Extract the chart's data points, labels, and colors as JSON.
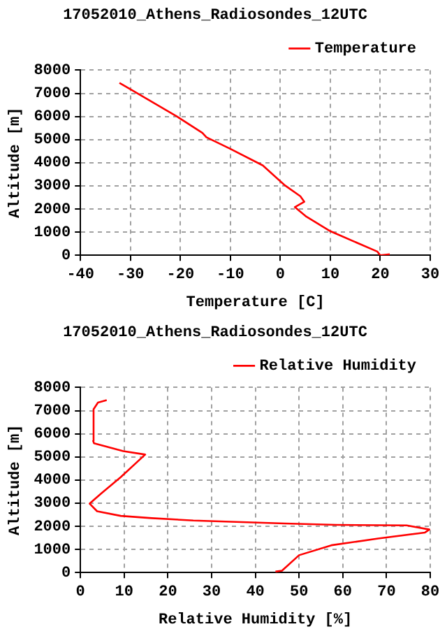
{
  "chart_data": [
    {
      "type": "line",
      "title": "17052010_Athens_Radiosondes_12UTC",
      "xlabel": "Temperature [C]",
      "ylabel": "Altitude [m]",
      "xlim": [
        -40,
        30
      ],
      "xticks": [
        -40,
        -30,
        -20,
        -10,
        0,
        10,
        20,
        30
      ],
      "ylim": [
        0,
        8000
      ],
      "yticks": [
        0,
        1000,
        2000,
        3000,
        4000,
        5000,
        6000,
        7000,
        8000
      ],
      "grid": true,
      "legend": "top right",
      "marker": "none",
      "line_style": "solid",
      "series": [
        {
          "name": "Temperature",
          "color": "#ff0000",
          "x": [
            21.9,
            20,
            19.4,
            10,
            5.2,
            2.9,
            4.8,
            4.0,
            0.8,
            -3.5,
            -10.1,
            -14.8,
            -15.6,
            -21.0,
            -29.9,
            -32.2
          ],
          "values": [
            40,
            0,
            160,
            1040,
            1670,
            2080,
            2310,
            2550,
            3040,
            3880,
            4610,
            5100,
            5290,
            6040,
            7160,
            7450
          ]
        }
      ]
    },
    {
      "type": "line",
      "title": "17052010_Athens_Radiosondes_12UTC",
      "xlabel": "Relative Humidity [%]",
      "ylabel": "Altitude [m]",
      "xlim": [
        0,
        80
      ],
      "xticks": [
        0,
        10,
        20,
        30,
        40,
        50,
        60,
        70,
        80
      ],
      "ylim": [
        0,
        8000
      ],
      "yticks": [
        0,
        1000,
        2000,
        3000,
        4000,
        5000,
        6000,
        7000,
        8000
      ],
      "grid": true,
      "legend": "top right",
      "marker": "none",
      "line_style": "solid",
      "series": [
        {
          "name": "Relative Humidity",
          "color": "#ff0000",
          "x": [
            44.6,
            46.1,
            50,
            57.4,
            68.1,
            78.8,
            79.8,
            74.6,
            58.6,
            46.7,
            25.8,
            16.3,
            9.2,
            3.8,
            2.1,
            4.8,
            9.2,
            14.8,
            9.8,
            3.1,
            2.9,
            3.0,
            4.0,
            6.0
          ],
          "values": [
            40,
            80,
            750,
            1180,
            1470,
            1730,
            1860,
            2040,
            2060,
            2120,
            2250,
            2350,
            2450,
            2650,
            2980,
            3430,
            4120,
            5100,
            5250,
            5590,
            5690,
            7060,
            7350,
            7450
          ]
        }
      ]
    }
  ]
}
